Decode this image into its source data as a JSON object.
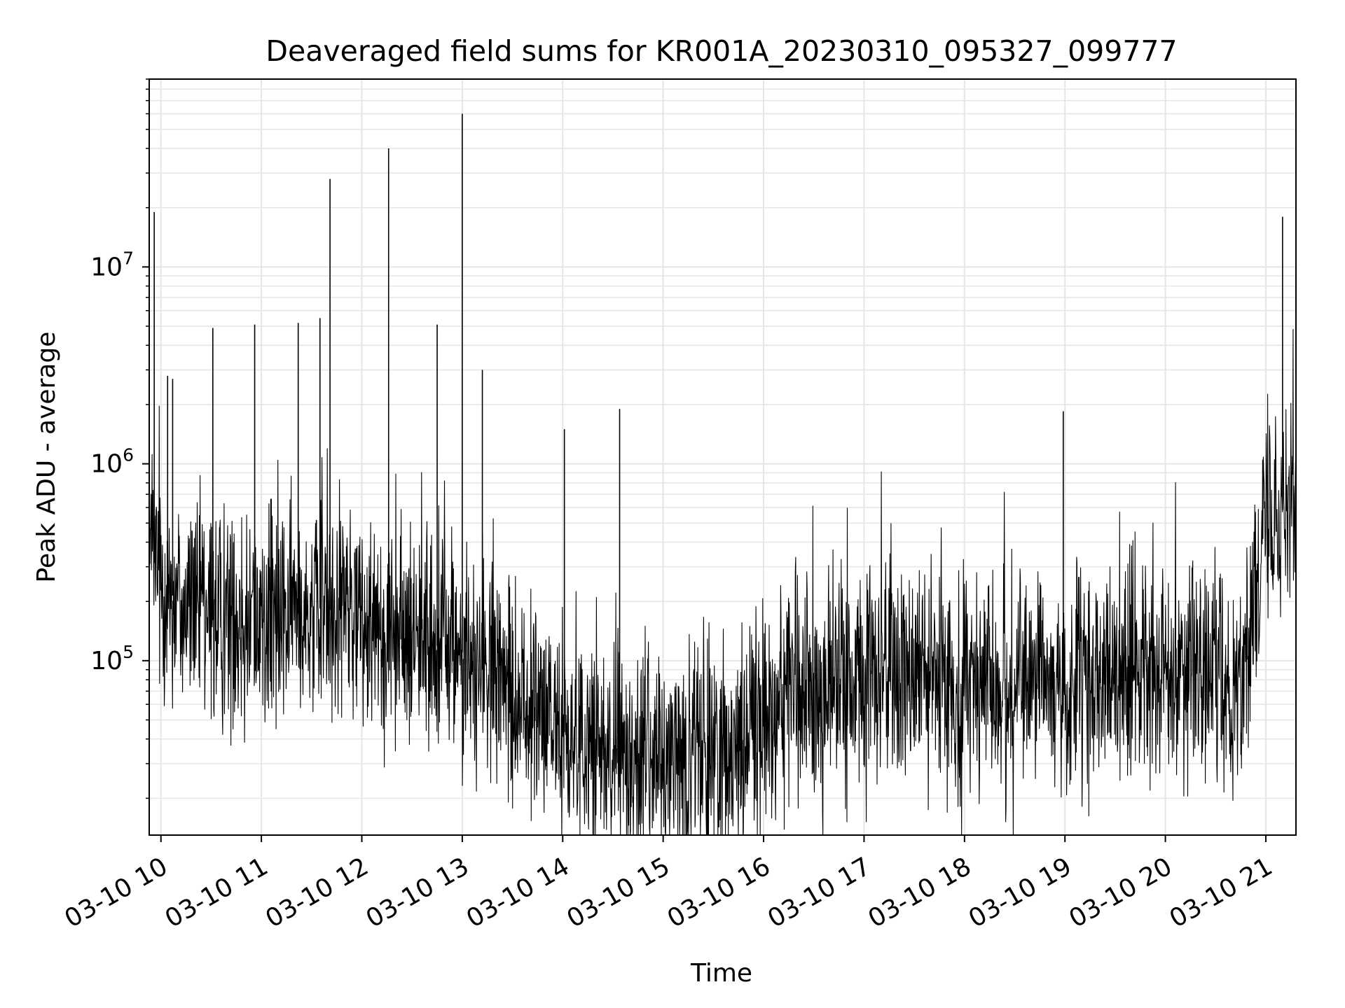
{
  "chart_data": {
    "type": "line",
    "title": "Deaveraged field sums for KR001A_20230310_095327_099777",
    "xlabel": "Time",
    "ylabel": "Peak ADU - average",
    "yscale": "log",
    "grid": true,
    "line_color": "#000000",
    "xlim": [
      "2023-03-10 09:53",
      "2023-03-10 21:18"
    ],
    "ylim": [
      13000,
      90000000
    ],
    "x_ticks": [
      {
        "value": "2023-03-10 10:00",
        "label": "03-10 10"
      },
      {
        "value": "2023-03-10 11:00",
        "label": "03-10 11"
      },
      {
        "value": "2023-03-10 12:00",
        "label": "03-10 12"
      },
      {
        "value": "2023-03-10 13:00",
        "label": "03-10 13"
      },
      {
        "value": "2023-03-10 14:00",
        "label": "03-10 14"
      },
      {
        "value": "2023-03-10 15:00",
        "label": "03-10 15"
      },
      {
        "value": "2023-03-10 16:00",
        "label": "03-10 16"
      },
      {
        "value": "2023-03-10 17:00",
        "label": "03-10 17"
      },
      {
        "value": "2023-03-10 18:00",
        "label": "03-10 18"
      },
      {
        "value": "2023-03-10 19:00",
        "label": "03-10 19"
      },
      {
        "value": "2023-03-10 20:00",
        "label": "03-10 20"
      },
      {
        "value": "2023-03-10 21:00",
        "label": "03-10 21"
      }
    ],
    "y_ticks": [
      {
        "value": 100000,
        "base": "10",
        "exp": "5"
      },
      {
        "value": 1000000,
        "base": "10",
        "exp": "6"
      },
      {
        "value": 10000000,
        "base": "10",
        "exp": "7"
      }
    ],
    "series": [
      {
        "x": [
          "2023-03-10 09:53",
          "2023-03-10 09:59",
          "2023-03-10 10:05",
          "2023-03-10 10:12",
          "2023-03-10 10:18",
          "2023-03-10 10:24",
          "2023-03-10 10:30",
          "2023-03-10 10:36",
          "2023-03-10 10:42",
          "2023-03-10 10:48",
          "2023-03-10 10:54",
          "2023-03-10 11:00",
          "2023-03-10 11:06",
          "2023-03-10 11:12",
          "2023-03-10 11:18",
          "2023-03-10 11:24",
          "2023-03-10 11:30",
          "2023-03-10 11:36",
          "2023-03-10 11:42",
          "2023-03-10 11:48",
          "2023-03-10 11:54",
          "2023-03-10 12:00",
          "2023-03-10 12:06",
          "2023-03-10 12:12",
          "2023-03-10 12:18",
          "2023-03-10 12:24",
          "2023-03-10 12:30",
          "2023-03-10 12:36",
          "2023-03-10 12:42",
          "2023-03-10 12:48",
          "2023-03-10 12:54",
          "2023-03-10 13:00",
          "2023-03-10 13:06",
          "2023-03-10 13:12",
          "2023-03-10 13:18",
          "2023-03-10 13:24",
          "2023-03-10 13:30",
          "2023-03-10 13:36",
          "2023-03-10 13:42",
          "2023-03-10 13:48",
          "2023-03-10 13:54",
          "2023-03-10 14:00",
          "2023-03-10 14:06",
          "2023-03-10 14:12",
          "2023-03-10 14:18",
          "2023-03-10 14:24",
          "2023-03-10 14:30",
          "2023-03-10 14:36",
          "2023-03-10 14:42",
          "2023-03-10 14:48",
          "2023-03-10 14:54",
          "2023-03-10 15:00",
          "2023-03-10 15:06",
          "2023-03-10 15:12",
          "2023-03-10 15:18",
          "2023-03-10 15:24",
          "2023-03-10 15:30",
          "2023-03-10 15:36",
          "2023-03-10 15:42",
          "2023-03-10 15:48",
          "2023-03-10 15:54",
          "2023-03-10 16:00",
          "2023-03-10 16:06",
          "2023-03-10 16:12",
          "2023-03-10 16:18",
          "2023-03-10 16:24",
          "2023-03-10 16:30",
          "2023-03-10 16:36",
          "2023-03-10 16:42",
          "2023-03-10 16:48",
          "2023-03-10 16:54",
          "2023-03-10 17:00",
          "2023-03-10 17:06",
          "2023-03-10 17:12",
          "2023-03-10 17:18",
          "2023-03-10 17:24",
          "2023-03-10 17:30",
          "2023-03-10 17:36",
          "2023-03-10 17:42",
          "2023-03-10 17:48",
          "2023-03-10 17:54",
          "2023-03-10 18:00",
          "2023-03-10 18:06",
          "2023-03-10 18:12",
          "2023-03-10 18:18",
          "2023-03-10 18:24",
          "2023-03-10 18:30",
          "2023-03-10 18:36",
          "2023-03-10 18:42",
          "2023-03-10 18:48",
          "2023-03-10 18:54",
          "2023-03-10 19:00",
          "2023-03-10 19:06",
          "2023-03-10 19:12",
          "2023-03-10 19:18",
          "2023-03-10 19:24",
          "2023-03-10 19:30",
          "2023-03-10 19:36",
          "2023-03-10 19:42",
          "2023-03-10 19:48",
          "2023-03-10 19:54",
          "2023-03-10 20:00",
          "2023-03-10 20:06",
          "2023-03-10 20:12",
          "2023-03-10 20:18",
          "2023-03-10 20:24",
          "2023-03-10 20:30",
          "2023-03-10 20:36",
          "2023-03-10 20:42",
          "2023-03-10 20:48",
          "2023-03-10 20:54",
          "2023-03-10 21:00",
          "2023-03-10 21:06",
          "2023-03-10 21:12",
          "2023-03-10 21:18"
        ],
        "y": [
          350000,
          280000,
          220000,
          200000,
          180000,
          170000,
          160000,
          165000,
          170000,
          160000,
          165000,
          170000,
          165000,
          160000,
          170000,
          175000,
          180000,
          185000,
          180000,
          175000,
          165000,
          160000,
          150000,
          150000,
          145000,
          140000,
          130000,
          125000,
          120000,
          118000,
          115000,
          110000,
          100000,
          90000,
          80000,
          70000,
          62000,
          55000,
          52000,
          50000,
          48000,
          44000,
          40000,
          38000,
          36000,
          35000,
          34000,
          33000,
          32000,
          32000,
          32000,
          32000,
          32000,
          31000,
          31000,
          32000,
          33000,
          34000,
          36000,
          40000,
          45000,
          50000,
          55000,
          58000,
          60000,
          62000,
          64000,
          66000,
          68000,
          70000,
          72000,
          74000,
          76000,
          78000,
          80000,
          80000,
          78000,
          78000,
          76000,
          75000,
          74000,
          73000,
          72000,
          72000,
          71000,
          71000,
          70000,
          72000,
          72000,
          73000,
          74000,
          75000,
          75000,
          76000,
          77000,
          78000,
          80000,
          82000,
          85000,
          90000,
          95000,
          100000,
          95000,
          90000,
          85000,
          82000,
          80000,
          80000,
          80000,
          90000,
          350000,
          500000,
          550000,
          600000,
          600000
        ]
      }
    ],
    "spikes": [
      {
        "x": "2023-03-10 09:56",
        "y": 19000000
      },
      {
        "x": "2023-03-10 10:04",
        "y": 2800000
      },
      {
        "x": "2023-03-10 10:07",
        "y": 2700000
      },
      {
        "x": "2023-03-10 10:31",
        "y": 4900000
      },
      {
        "x": "2023-03-10 10:56",
        "y": 5100000
      },
      {
        "x": "2023-03-10 11:22",
        "y": 5200000
      },
      {
        "x": "2023-03-10 11:35",
        "y": 5500000
      },
      {
        "x": "2023-03-10 11:41",
        "y": 28000000
      },
      {
        "x": "2023-03-10 12:16",
        "y": 40000000
      },
      {
        "x": "2023-03-10 12:45",
        "y": 5100000
      },
      {
        "x": "2023-03-10 13:00",
        "y": 60000000
      },
      {
        "x": "2023-03-10 13:12",
        "y": 3000000
      },
      {
        "x": "2023-03-10 14:01",
        "y": 1500000
      },
      {
        "x": "2023-03-10 14:34",
        "y": 1900000
      },
      {
        "x": "2023-03-10 18:59",
        "y": 1850000
      },
      {
        "x": "2023-03-10 21:10",
        "y": 18000000
      }
    ]
  }
}
